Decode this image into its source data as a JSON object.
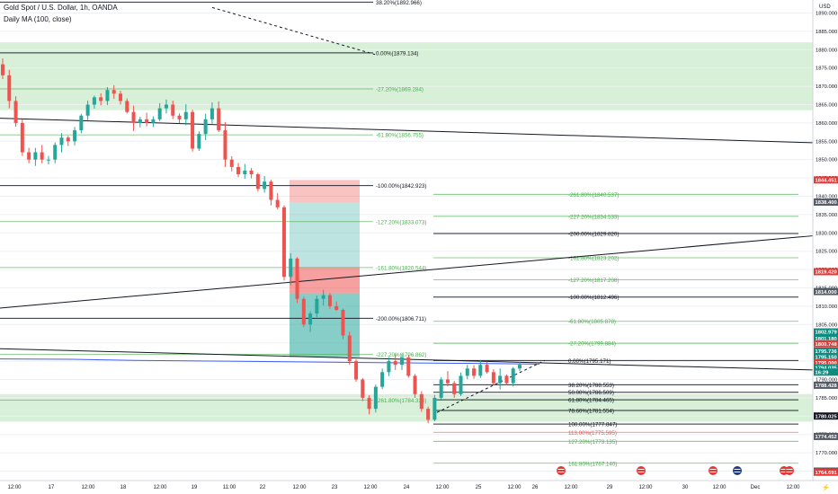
{
  "header": {
    "title": "Gold Spot / U.S. Dollar, 1h, OANDA",
    "indicator": "Daily MA (100, close)",
    "currency": "USD"
  },
  "colors": {
    "bull": "#26a69a",
    "bear": "#ef5350",
    "fib_green": "#4caf50",
    "zone_fill": "#d7f0d7",
    "ma": "#3d5afe",
    "red_tag": "#e53935",
    "grey_tag": "#555c66",
    "teal_tag": "#0e8a7f"
  },
  "chart_data": {
    "type": "candlestick",
    "y_axis": {
      "ylim": [
        1762,
        1891
      ],
      "ticks": [
        1890,
        1885,
        1880,
        1875,
        1870,
        1865,
        1860,
        1855,
        1850,
        1845,
        1840,
        1835,
        1830,
        1825,
        1820,
        1815,
        1810,
        1805,
        1800,
        1795,
        1790,
        1785,
        1780,
        1775,
        1770,
        1765
      ],
      "tick_labels": [
        "1890.000",
        "1885.000",
        "1880.000",
        "1875.000",
        "1870.000",
        "1865.000",
        "1860.000",
        "1855.000",
        "1850.000",
        "1845.000",
        "1840.000",
        "1835.000",
        "1830.000",
        "1825.000",
        "1820.000",
        "1815.000",
        "1810.000",
        "1805.000",
        "1800.000",
        "1795.000",
        "1790.000",
        "1785.000",
        "1780.000",
        "1775.000",
        "1770.000",
        "1765.000"
      ]
    },
    "x_axis": {
      "labels": [
        "12:00",
        "17",
        "12:00",
        "18",
        "12:00",
        "19",
        "11:00",
        "22",
        "12:00",
        "23",
        "12:00",
        "24",
        "12:00",
        "25",
        "12:00",
        "26",
        "12:00",
        "29",
        "12:00",
        "30",
        "12:00",
        "Dec",
        "12:00"
      ]
    },
    "price_tags": [
      {
        "value": 1844.451,
        "label": "1844.451",
        "kind": "red"
      },
      {
        "value": 1838.4,
        "label": "1838.400",
        "kind": "grey"
      },
      {
        "value": 1819.42,
        "label": "1819.420",
        "kind": "red"
      },
      {
        "value": 1814.0,
        "label": "1814.000",
        "kind": "grey"
      },
      {
        "value": 1802.979,
        "label": "1802.979",
        "kind": "teal"
      },
      {
        "value": 1801.18,
        "label": "1801.180",
        "kind": "teal"
      },
      {
        "value": 1799.748,
        "label": "1800.748",
        "kind": "red"
      },
      {
        "value": 1797.736,
        "label": "1795.736",
        "kind": "teal"
      },
      {
        "value": 1796.15,
        "label": "1795.150",
        "kind": "teal"
      },
      {
        "value": 1794.6,
        "label": "1795.000",
        "kind": "red"
      },
      {
        "value": 1793.2,
        "label": "1794.035",
        "kind": "teal"
      },
      {
        "value": 1792.0,
        "label": "16:29",
        "kind": "teal"
      },
      {
        "value": 1788.428,
        "label": "1788.428",
        "kind": "grey"
      },
      {
        "value": 1780.025,
        "label": "1780.025",
        "kind": "black"
      },
      {
        "value": 1774.452,
        "label": "1774.452",
        "kind": "grey"
      },
      {
        "value": 1765.0,
        "label": "1765.000",
        "kind": "grey"
      },
      {
        "value": 1764.691,
        "label": "1764.691",
        "kind": "red"
      }
    ],
    "fib_labels": [
      {
        "value": 1892.966,
        "label": "38.20%(1892.966)",
        "color": "black"
      },
      {
        "value": 1879.134,
        "label": "0.00%(1879.134)",
        "color": "black"
      },
      {
        "value": 1869.284,
        "label": "-27.20%(1869.284)",
        "color": "green"
      },
      {
        "value": 1856.755,
        "label": "-61.80%(1856.755)",
        "color": "green"
      },
      {
        "value": 1842.923,
        "label": "-100.00%(1842.923)",
        "color": "black"
      },
      {
        "value": 1833.073,
        "label": "-127.20%(1833.073)",
        "color": "green"
      },
      {
        "value": 1820.544,
        "label": "-161.80%(1820.544)",
        "color": "green"
      },
      {
        "value": 1806.711,
        "label": "-200.00%(1806.711)",
        "color": "black"
      },
      {
        "value": 1796.862,
        "label": "-227.20%(1796.862)",
        "color": "green"
      },
      {
        "value": 1784.333,
        "label": "-261.80%(1784.333)",
        "color": "green"
      },
      {
        "value": 1840.537,
        "label": "-261.80%(1840.537)",
        "color": "green"
      },
      {
        "value": 1834.533,
        "label": "-227.20%(1834.533)",
        "color": "green"
      },
      {
        "value": 1829.82,
        "label": "-200.00%(1829.820)",
        "color": "black"
      },
      {
        "value": 1823.202,
        "label": "-161.80%(1823.202)",
        "color": "green"
      },
      {
        "value": 1817.208,
        "label": "-127.20%(1817.208)",
        "color": "green"
      },
      {
        "value": 1812.496,
        "label": "-100.00%(1812.496)",
        "color": "black"
      },
      {
        "value": 1805.878,
        "label": "-61.80%(1805.878)",
        "color": "green"
      },
      {
        "value": 1799.884,
        "label": "-27.20%(1799.884)",
        "color": "green"
      },
      {
        "value": 1795.171,
        "label": "0.00%(1795.171)",
        "color": "black"
      },
      {
        "value": 1788.553,
        "label": "38.20%(1788.553)",
        "color": "black"
      },
      {
        "value": 1786.509,
        "label": "50.00%(1786.509)",
        "color": "black"
      },
      {
        "value": 1784.465,
        "label": "61.80%(1784.465)",
        "color": "black"
      },
      {
        "value": 1781.554,
        "label": "78.60%(1781.554)",
        "color": "black"
      },
      {
        "value": 1777.847,
        "label": "100.00%(1777.847)",
        "color": "black"
      },
      {
        "value": 1775.595,
        "label": "113.00%(1775.595)",
        "color": "red"
      },
      {
        "value": 1773.135,
        "label": "127.20%(1773.135)",
        "color": "green"
      },
      {
        "value": 1767.14,
        "label": "161.80%(1767.140)",
        "color": "green"
      }
    ],
    "zones": [
      {
        "from": 1863.5,
        "to": 1882.0
      },
      {
        "from": 1778.5,
        "to": 1786.0
      }
    ],
    "position_tool": {
      "stop_from": 1838.4,
      "stop_to": 1844.451,
      "target_from": 1796.15,
      "target_to": 1838.4
    },
    "candles_ohlc": [
      [
        1876.0,
        1877.6,
        1872.0,
        1873.0
      ],
      [
        1873.0,
        1874.5,
        1864.0,
        1866.0
      ],
      [
        1866.0,
        1867.3,
        1859.0,
        1860.0
      ],
      [
        1860.0,
        1861.0,
        1851.0,
        1852.0
      ],
      [
        1852.0,
        1853.2,
        1849.0,
        1850.0
      ],
      [
        1850.0,
        1853.2,
        1848.3,
        1852.0
      ],
      [
        1852.0,
        1854.0,
        1849.0,
        1850.0
      ],
      [
        1850.0,
        1851.0,
        1848.7,
        1850.0
      ],
      [
        1850.0,
        1854.7,
        1849.0,
        1854.0
      ],
      [
        1854.0,
        1857.2,
        1852.0,
        1856.0
      ],
      [
        1856.0,
        1856.5,
        1853.7,
        1855.0
      ],
      [
        1855.0,
        1858.9,
        1853.9,
        1858.0
      ],
      [
        1858.0,
        1862.5,
        1857.2,
        1862.0
      ],
      [
        1862.0,
        1866.1,
        1860.8,
        1865.0
      ],
      [
        1865.0,
        1867.5,
        1863.9,
        1867.0
      ],
      [
        1867.0,
        1868.1,
        1864.8,
        1866.0
      ],
      [
        1866.0,
        1869.8,
        1864.9,
        1869.0
      ],
      [
        1869.0,
        1870.3,
        1866.6,
        1868.0
      ],
      [
        1868.0,
        1868.8,
        1865.0,
        1866.0
      ],
      [
        1866.0,
        1866.7,
        1862.6,
        1863.0
      ],
      [
        1863.0,
        1864.7,
        1857.8,
        1860.0
      ],
      [
        1860.0,
        1861.7,
        1858.8,
        1861.0
      ],
      [
        1861.0,
        1862.8,
        1859.1,
        1860.0
      ],
      [
        1860.0,
        1861.8,
        1858.9,
        1861.0
      ],
      [
        1861.0,
        1865.4,
        1860.5,
        1864.0
      ],
      [
        1864.0,
        1866.4,
        1862.6,
        1865.0
      ],
      [
        1865.0,
        1866.1,
        1861.1,
        1862.0
      ],
      [
        1862.0,
        1862.6,
        1860.0,
        1861.0
      ],
      [
        1861.0,
        1865.1,
        1859.4,
        1863.0
      ],
      [
        1863.0,
        1863.6,
        1852.2,
        1853.0
      ],
      [
        1853.0,
        1857.7,
        1852.4,
        1857.0
      ],
      [
        1857.0,
        1862.5,
        1855.3,
        1861.0
      ],
      [
        1861.0,
        1865.6,
        1859.8,
        1864.0
      ],
      [
        1864.0,
        1865.9,
        1857.5,
        1858.0
      ],
      [
        1858.0,
        1860.2,
        1848.0,
        1850.0
      ],
      [
        1850.0,
        1850.9,
        1846.8,
        1848.0
      ],
      [
        1848.0,
        1849.1,
        1845.2,
        1846.0
      ],
      [
        1846.0,
        1848.8,
        1844.8,
        1847.0
      ],
      [
        1847.0,
        1847.7,
        1844.9,
        1846.0
      ],
      [
        1846.0,
        1846.4,
        1841.3,
        1842.0
      ],
      [
        1842.0,
        1845.5,
        1841.0,
        1844.0
      ],
      [
        1844.0,
        1844.5,
        1837.5,
        1839.0
      ],
      [
        1839.0,
        1840.8,
        1836.5,
        1837.0
      ],
      [
        1837.0,
        1837.5,
        1817.0,
        1818.0
      ],
      [
        1818.0,
        1824.4,
        1815.7,
        1823.0
      ],
      [
        1823.0,
        1823.4,
        1810.9,
        1812.0
      ],
      [
        1812.0,
        1812.6,
        1804.3,
        1805.0
      ],
      [
        1805.0,
        1808.6,
        1802.9,
        1808.0
      ],
      [
        1808.0,
        1812.9,
        1807.0,
        1812.0
      ],
      [
        1812.0,
        1814.5,
        1810.2,
        1813.0
      ],
      [
        1813.0,
        1813.6,
        1809.3,
        1810.0
      ],
      [
        1810.0,
        1811.3,
        1808.7,
        1809.0
      ],
      [
        1809.0,
        1809.4,
        1801.0,
        1802.0
      ],
      [
        1802.0,
        1803.0,
        1794.0,
        1795.0
      ],
      [
        1795.0,
        1795.5,
        1789.4,
        1790.0
      ],
      [
        1790.0,
        1790.4,
        1784.1,
        1785.0
      ],
      [
        1785.0,
        1785.7,
        1780.5,
        1782.0
      ],
      [
        1782.0,
        1788.6,
        1781.0,
        1788.0
      ],
      [
        1788.0,
        1793.0,
        1787.4,
        1792.0
      ],
      [
        1792.0,
        1796.1,
        1790.9,
        1795.0
      ],
      [
        1795.0,
        1796.9,
        1792.6,
        1794.0
      ],
      [
        1794.0,
        1797.1,
        1792.6,
        1796.0
      ],
      [
        1796.0,
        1796.7,
        1790.5,
        1791.0
      ],
      [
        1791.0,
        1791.5,
        1785.0,
        1786.0
      ],
      [
        1786.0,
        1786.8,
        1781.2,
        1782.0
      ],
      [
        1782.0,
        1782.6,
        1778.1,
        1779.0
      ],
      [
        1779.0,
        1785.8,
        1778.6,
        1785.0
      ],
      [
        1785.0,
        1790.6,
        1784.5,
        1790.0
      ],
      [
        1790.0,
        1792.3,
        1788.1,
        1789.0
      ],
      [
        1789.0,
        1789.6,
        1785.0,
        1786.0
      ],
      [
        1786.0,
        1791.9,
        1785.5,
        1791.0
      ],
      [
        1791.0,
        1794.0,
        1790.1,
        1793.0
      ],
      [
        1793.0,
        1793.9,
        1790.2,
        1791.0
      ],
      [
        1791.0,
        1795.3,
        1790.4,
        1794.0
      ],
      [
        1794.0,
        1794.9,
        1791.6,
        1792.0
      ],
      [
        1792.0,
        1792.8,
        1788.5,
        1789.0
      ],
      [
        1789.0,
        1793.0,
        1787.3,
        1791.0
      ],
      [
        1791.0,
        1791.4,
        1788.5,
        1789.0
      ],
      [
        1789.0,
        1793.4,
        1788.1,
        1793.0
      ],
      [
        1793.0,
        1794.8,
        1792.3,
        1794.0
      ]
    ],
    "lines": [
      {
        "kind": "trend",
        "color": "black",
        "width": 1,
        "points": [
          [
            0,
            1861.3
          ],
          [
            904,
            1854.6
          ]
        ]
      },
      {
        "kind": "trend",
        "color": "black",
        "width": 1,
        "points": [
          [
            0,
            1809.5
          ],
          [
            904,
            1829.2
          ]
        ]
      },
      {
        "kind": "trend",
        "color": "black",
        "width": 1,
        "points": [
          [
            0,
            1798.4
          ],
          [
            904,
            1792.6
          ]
        ]
      },
      {
        "kind": "trend",
        "color": "black",
        "width": 1,
        "dash": true,
        "points": [
          [
            236,
            1891.5
          ],
          [
            417,
            1878.7
          ]
        ]
      },
      {
        "kind": "trend",
        "color": "black",
        "width": 1,
        "dash": true,
        "points": [
          [
            486,
            1781.0
          ],
          [
            606,
            1795.2
          ]
        ]
      }
    ]
  },
  "footer": {
    "event_flags": [
      "us-flag",
      "us-flag",
      "us-flag",
      "eu-flag",
      "us-flag",
      "us-flag"
    ],
    "nav_label": "⚡"
  }
}
